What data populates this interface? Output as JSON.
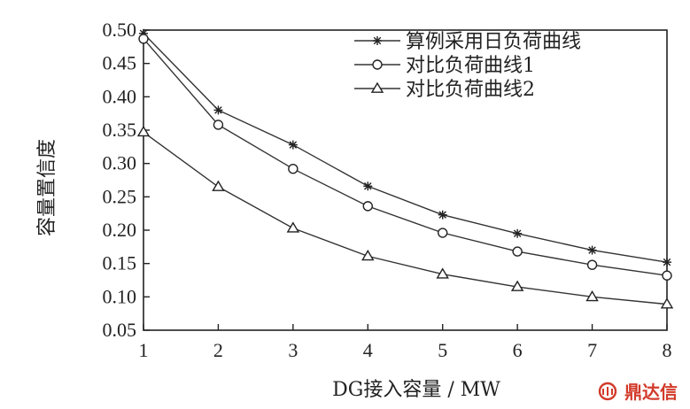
{
  "chart_data": {
    "type": "line",
    "xlabel": "DG接入容量 / MW",
    "ylabel": "容量置信度",
    "x": [
      1,
      2,
      3,
      4,
      5,
      6,
      7,
      8
    ],
    "xlim": [
      1,
      8
    ],
    "ylim": [
      0.05,
      0.5
    ],
    "x_ticks": [
      "1",
      "2",
      "3",
      "4",
      "5",
      "6",
      "7",
      "8"
    ],
    "y_ticks": [
      "0.05",
      "0.10",
      "0.15",
      "0.20",
      "0.25",
      "0.30",
      "0.35",
      "0.40",
      "0.45",
      "0.50"
    ],
    "legend_position": "top-right",
    "grid": false,
    "series": [
      {
        "name": "算例采用日负荷曲线",
        "marker": "star",
        "values": [
          0.495,
          0.38,
          0.328,
          0.266,
          0.223,
          0.195,
          0.17,
          0.152
        ]
      },
      {
        "name": "对比负荷曲线1",
        "marker": "circle",
        "values": [
          0.487,
          0.358,
          0.292,
          0.236,
          0.196,
          0.168,
          0.148,
          0.132
        ]
      },
      {
        "name": "对比负荷曲线2",
        "marker": "triangle",
        "values": [
          0.347,
          0.265,
          0.203,
          0.161,
          0.134,
          0.115,
          0.1,
          0.089
        ]
      }
    ]
  },
  "watermark": {
    "text": "鼎达信",
    "color": "#d23a2a"
  }
}
